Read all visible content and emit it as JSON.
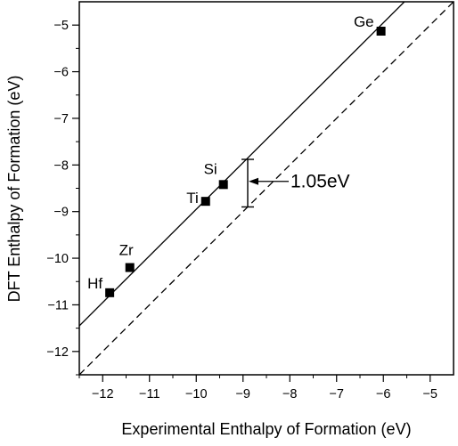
{
  "chart_data": {
    "type": "scatter",
    "xlabel": "Experimental Enthalpy of Formation (eV)",
    "ylabel": "DFT Enthalpy of Formation (eV)",
    "xlim": [
      -12.5,
      -4.5
    ],
    "ylim": [
      -12.5,
      -4.5
    ],
    "xticks": [
      -12,
      -11,
      -10,
      -9,
      -8,
      -7,
      -6,
      -5
    ],
    "yticks": [
      -12,
      -11,
      -10,
      -9,
      -8,
      -7,
      -6,
      -5
    ],
    "grid": false,
    "points": [
      {
        "label": "Ge",
        "x": -6.05,
        "y": -5.13
      },
      {
        "label": "Si",
        "x": -9.42,
        "y": -8.42
      },
      {
        "label": "Ti",
        "x": -9.8,
        "y": -8.78
      },
      {
        "label": "Zr",
        "x": -11.42,
        "y": -10.2
      },
      {
        "label": "Hf",
        "x": -11.85,
        "y": -10.74
      }
    ],
    "lines": [
      {
        "style": "solid",
        "slope": 1,
        "intercept": 1.05
      },
      {
        "style": "dashed",
        "slope": 1,
        "intercept": 0
      }
    ],
    "annotation": {
      "text": "1.05eV",
      "x": -8.9,
      "y_top": -7.88,
      "y_bottom": -8.9
    }
  }
}
